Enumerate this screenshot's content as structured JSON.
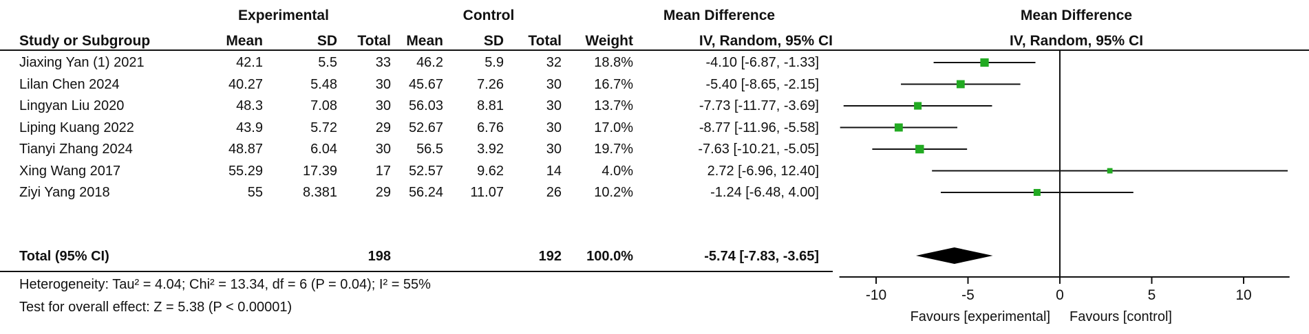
{
  "headers": {
    "experimental": "Experimental",
    "control": "Control",
    "md_title": "Mean Difference",
    "study": "Study or Subgroup",
    "mean": "Mean",
    "sd": "SD",
    "total": "Total",
    "weight": "Weight",
    "method": "IV, Random, 95% CI",
    "plot_title": "Mean Difference",
    "plot_method": "IV, Random, 95% CI"
  },
  "studies": [
    {
      "name": "Jiaxing Yan (1) 2021",
      "e_mean": "42.1",
      "e_sd": "5.5",
      "e_total": "33",
      "c_mean": "46.2",
      "c_sd": "5.9",
      "c_total": "32",
      "weight": "18.8%",
      "ci_text": "-4.10 [-6.87, -1.33]"
    },
    {
      "name": "Lilan Chen 2024",
      "e_mean": "40.27",
      "e_sd": "5.48",
      "e_total": "30",
      "c_mean": "45.67",
      "c_sd": "7.26",
      "c_total": "30",
      "weight": "16.7%",
      "ci_text": "-5.40 [-8.65, -2.15]"
    },
    {
      "name": "Lingyan Liu 2020",
      "e_mean": "48.3",
      "e_sd": "7.08",
      "e_total": "30",
      "c_mean": "56.03",
      "c_sd": "8.81",
      "c_total": "30",
      "weight": "13.7%",
      "ci_text": "-7.73 [-11.77, -3.69]"
    },
    {
      "name": "Liping Kuang 2022",
      "e_mean": "43.9",
      "e_sd": "5.72",
      "e_total": "29",
      "c_mean": "52.67",
      "c_sd": "6.76",
      "c_total": "30",
      "weight": "17.0%",
      "ci_text": "-8.77 [-11.96, -5.58]"
    },
    {
      "name": "Tianyi Zhang 2024",
      "e_mean": "48.87",
      "e_sd": "6.04",
      "e_total": "30",
      "c_mean": "56.5",
      "c_sd": "3.92",
      "c_total": "30",
      "weight": "19.7%",
      "ci_text": "-7.63 [-10.21, -5.05]"
    },
    {
      "name": "Xing Wang 2017",
      "e_mean": "55.29",
      "e_sd": "17.39",
      "e_total": "17",
      "c_mean": "52.57",
      "c_sd": "9.62",
      "c_total": "14",
      "weight": "4.0%",
      "ci_text": "2.72 [-6.96, 12.40]"
    },
    {
      "name": "Ziyi Yang 2018",
      "e_mean": "55",
      "e_sd": "8.381",
      "e_total": "29",
      "c_mean": "56.24",
      "c_sd": "11.07",
      "c_total": "26",
      "weight": "10.2%",
      "ci_text": "-1.24 [-6.48, 4.00]"
    }
  ],
  "total_row": {
    "label": "Total (95% CI)",
    "e_total": "198",
    "c_total": "192",
    "weight": "100.0%",
    "ci_text": "-5.74 [-7.83, -3.65]"
  },
  "heterogeneity": "Heterogeneity: Tau² = 4.04; Chi² = 13.34, df = 6 (P = 0.04); I² = 55%",
  "overall_effect": "Test for overall effect: Z = 5.38 (P < 0.00001)",
  "chart_data": {
    "type": "forest",
    "xlim": [
      -12,
      12.5
    ],
    "x_ticks": [
      -10,
      -5,
      0,
      5,
      10
    ],
    "x_tick_labels": [
      "-10",
      "-5",
      "0",
      "5",
      "10"
    ],
    "favours_left": "Favours [experimental]",
    "favours_right": "Favours [control]",
    "points": [
      {
        "md": -4.1,
        "lo": -6.87,
        "hi": -1.33,
        "weight": 18.8
      },
      {
        "md": -5.4,
        "lo": -8.65,
        "hi": -2.15,
        "weight": 16.7
      },
      {
        "md": -7.73,
        "lo": -11.77,
        "hi": -3.69,
        "weight": 13.7
      },
      {
        "md": -8.77,
        "lo": -11.96,
        "hi": -5.58,
        "weight": 17.0
      },
      {
        "md": -7.63,
        "lo": -10.21,
        "hi": -5.05,
        "weight": 19.7
      },
      {
        "md": 2.72,
        "lo": -6.96,
        "hi": 12.4,
        "weight": 4.0
      },
      {
        "md": -1.24,
        "lo": -6.48,
        "hi": 4.0,
        "weight": 10.2
      }
    ],
    "pooled": {
      "md": -5.74,
      "lo": -7.83,
      "hi": -3.65
    },
    "colors": {
      "marker": "#22aa22",
      "line": "#111111",
      "diamond": "#000000"
    }
  }
}
